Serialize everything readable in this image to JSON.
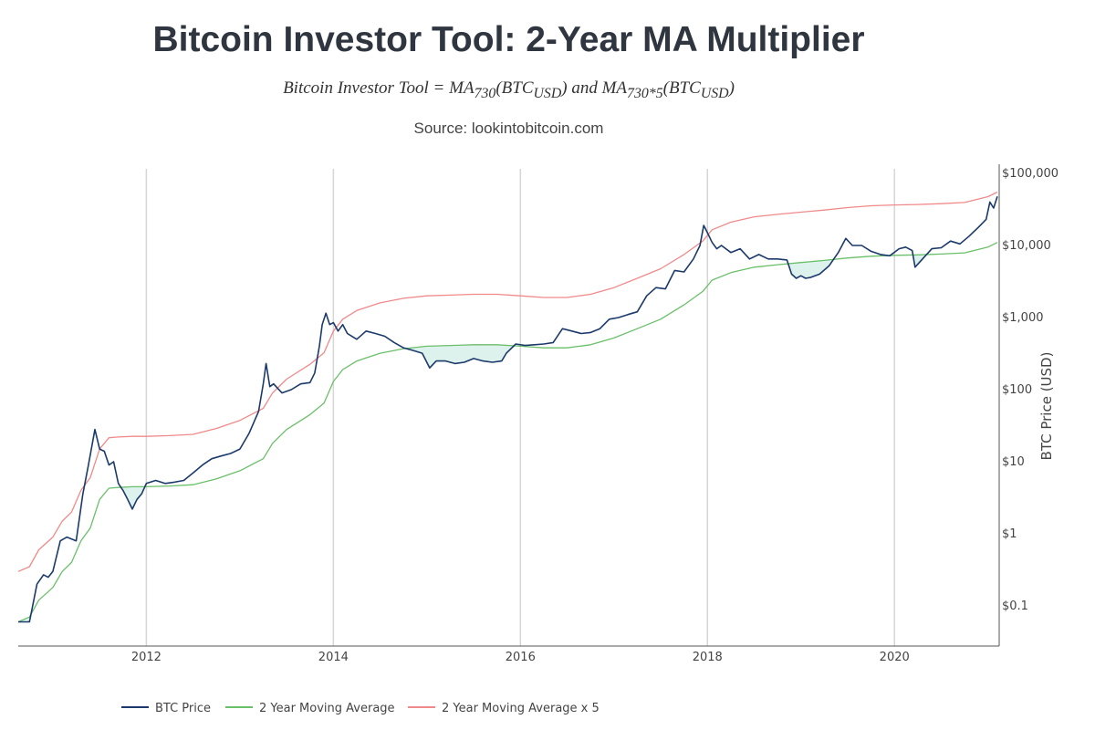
{
  "header": {
    "title": "Bitcoin Investor Tool: 2-Year MA Multiplier",
    "formula": "Bitcoin Investor Tool = MA730(BTCUSD) and MA730*5(BTCUSD)",
    "source": "Source: lookintobitcoin.com"
  },
  "chart_data": {
    "type": "line",
    "title": "Bitcoin Investor Tool: 2-Year MA Multiplier",
    "subtitle": "Bitcoin Investor Tool = MA730(BTCUSD) and MA730*5(BTCUSD)",
    "xlabel": "",
    "ylabel": "BTC Price (USD)",
    "yscale": "log",
    "ylim": [
      0.04,
      100000
    ],
    "xlim": [
      2010.63,
      2021.12
    ],
    "x_ticks": [
      "2012",
      "2014",
      "2016",
      "2018",
      "2020"
    ],
    "y_ticks": [
      "$0.1",
      "$1",
      "$10",
      "$100",
      "$1,000",
      "$10,000",
      "$100,000"
    ],
    "grid": "vertical",
    "y_axis_position": "right",
    "legend_position": "bottom",
    "fill_between": "BTC Price below 2 Year Moving Average",
    "series": [
      {
        "name": "BTC Price",
        "color": "#1b3a6b",
        "x": [
          2010.63,
          2010.75,
          2010.83,
          2010.9,
          2010.95,
          2011.0,
          2011.08,
          2011.15,
          2011.25,
          2011.32,
          2011.38,
          2011.45,
          2011.5,
          2011.55,
          2011.6,
          2011.65,
          2011.7,
          2011.75,
          2011.8,
          2011.85,
          2011.9,
          2011.95,
          2012.0,
          2012.1,
          2012.2,
          2012.3,
          2012.4,
          2012.5,
          2012.6,
          2012.7,
          2012.8,
          2012.9,
          2013.0,
          2013.1,
          2013.2,
          2013.25,
          2013.28,
          2013.32,
          2013.36,
          2013.45,
          2013.55,
          2013.65,
          2013.75,
          2013.8,
          2013.85,
          2013.88,
          2013.92,
          2013.96,
          2014.0,
          2014.05,
          2014.1,
          2014.15,
          2014.25,
          2014.35,
          2014.45,
          2014.55,
          2014.65,
          2014.75,
          2014.85,
          2014.95,
          2015.03,
          2015.1,
          2015.2,
          2015.3,
          2015.4,
          2015.5,
          2015.6,
          2015.7,
          2015.8,
          2015.85,
          2015.95,
          2016.05,
          2016.15,
          2016.25,
          2016.35,
          2016.45,
          2016.55,
          2016.65,
          2016.75,
          2016.85,
          2016.95,
          2017.05,
          2017.15,
          2017.25,
          2017.35,
          2017.45,
          2017.55,
          2017.65,
          2017.75,
          2017.85,
          2017.92,
          2017.96,
          2018.0,
          2018.05,
          2018.1,
          2018.15,
          2018.25,
          2018.35,
          2018.45,
          2018.55,
          2018.65,
          2018.75,
          2018.85,
          2018.9,
          2018.95,
          2019.0,
          2019.05,
          2019.1,
          2019.2,
          2019.3,
          2019.4,
          2019.48,
          2019.55,
          2019.65,
          2019.75,
          2019.85,
          2019.95,
          2020.05,
          2020.12,
          2020.19,
          2020.22,
          2020.3,
          2020.4,
          2020.5,
          2020.6,
          2020.7,
          2020.8,
          2020.9,
          2020.98,
          2021.02,
          2021.06,
          2021.1
        ],
        "values": [
          0.06,
          0.06,
          0.2,
          0.27,
          0.25,
          0.3,
          0.8,
          0.9,
          0.8,
          3.5,
          9.0,
          28.0,
          15.0,
          14.0,
          9.0,
          10.0,
          5.0,
          4.0,
          3.0,
          2.2,
          3.0,
          3.6,
          5.0,
          5.5,
          5.0,
          5.2,
          5.5,
          7.0,
          9.0,
          11.0,
          12.0,
          13.0,
          15.0,
          25.0,
          50.0,
          120.0,
          230.0,
          110.0,
          120.0,
          90.0,
          100.0,
          120.0,
          125.0,
          170.0,
          400.0,
          800.0,
          1150.0,
          800.0,
          850.0,
          650.0,
          800.0,
          600.0,
          500.0,
          650.0,
          600.0,
          550.0,
          450.0,
          380.0,
          350.0,
          320.0,
          200.0,
          250.0,
          250.0,
          230.0,
          240.0,
          270.0,
          250.0,
          240.0,
          250.0,
          320.0,
          430.0,
          410.0,
          420.0,
          430.0,
          450.0,
          700.0,
          650.0,
          600.0,
          620.0,
          700.0,
          950.0,
          1000.0,
          1100.0,
          1200.0,
          2000.0,
          2600.0,
          2500.0,
          4500.0,
          4300.0,
          6500.0,
          10000.0,
          19000.0,
          15000.0,
          11000.0,
          9000.0,
          10000.0,
          8000.0,
          9000.0,
          6500.0,
          7500.0,
          6500.0,
          6500.0,
          6300.0,
          4000.0,
          3500.0,
          3800.0,
          3500.0,
          3600.0,
          4000.0,
          5200.0,
          8000.0,
          12500.0,
          10000.0,
          10000.0,
          8300.0,
          7500.0,
          7200.0,
          9000.0,
          9500.0,
          8500.0,
          5000.0,
          6500.0,
          9000.0,
          9300.0,
          11500.0,
          10500.0,
          13500.0,
          18000.0,
          23000.0,
          40000.0,
          33000.0,
          48000.0
        ]
      },
      {
        "name": "2 Year Moving Average",
        "color": "#6abf69",
        "x": [
          2010.63,
          2010.75,
          2010.85,
          2011.0,
          2011.1,
          2011.2,
          2011.3,
          2011.4,
          2011.5,
          2011.6,
          2011.7,
          2011.85,
          2012.0,
          2012.25,
          2012.5,
          2012.75,
          2013.0,
          2013.25,
          2013.35,
          2013.5,
          2013.75,
          2013.9,
          2014.0,
          2014.1,
          2014.25,
          2014.5,
          2014.75,
          2015.0,
          2015.25,
          2015.5,
          2015.75,
          2016.0,
          2016.25,
          2016.5,
          2016.75,
          2017.0,
          2017.25,
          2017.5,
          2017.75,
          2017.95,
          2018.05,
          2018.25,
          2018.5,
          2018.75,
          2019.0,
          2019.25,
          2019.5,
          2019.75,
          2020.0,
          2020.25,
          2020.5,
          2020.75,
          2021.0,
          2021.1
        ],
        "values": [
          0.06,
          0.07,
          0.12,
          0.18,
          0.3,
          0.4,
          0.8,
          1.2,
          3.0,
          4.3,
          4.4,
          4.5,
          4.5,
          4.6,
          4.8,
          5.8,
          7.5,
          11.0,
          18.0,
          28.0,
          45.0,
          65.0,
          130.0,
          190.0,
          250.0,
          320.0,
          370.0,
          400.0,
          410.0,
          420.0,
          420.0,
          400.0,
          380.0,
          380.0,
          420.0,
          520.0,
          700.0,
          950.0,
          1500.0,
          2300.0,
          3300.0,
          4200.0,
          5000.0,
          5400.0,
          5800.0,
          6200.0,
          6700.0,
          7100.0,
          7300.0,
          7400.0,
          7600.0,
          7900.0,
          9500.0,
          11000.0
        ]
      },
      {
        "name": "2 Year Moving Average x 5",
        "color": "#f08a8a",
        "x": [
          2010.63,
          2010.75,
          2010.85,
          2011.0,
          2011.1,
          2011.2,
          2011.3,
          2011.4,
          2011.5,
          2011.6,
          2011.7,
          2011.85,
          2012.0,
          2012.25,
          2012.5,
          2012.75,
          2013.0,
          2013.25,
          2013.35,
          2013.5,
          2013.75,
          2013.9,
          2014.0,
          2014.1,
          2014.25,
          2014.5,
          2014.75,
          2015.0,
          2015.25,
          2015.5,
          2015.75,
          2016.0,
          2016.25,
          2016.5,
          2016.75,
          2017.0,
          2017.25,
          2017.5,
          2017.75,
          2017.95,
          2018.05,
          2018.25,
          2018.5,
          2018.75,
          2019.0,
          2019.25,
          2019.5,
          2019.75,
          2020.0,
          2020.25,
          2020.5,
          2020.75,
          2021.0,
          2021.1
        ],
        "values": [
          0.3,
          0.35,
          0.6,
          0.9,
          1.5,
          2.0,
          4.0,
          6.0,
          15.0,
          21.5,
          22.0,
          22.5,
          22.5,
          23.0,
          24.0,
          29.0,
          37.5,
          55.0,
          90.0,
          140.0,
          225.0,
          325.0,
          650.0,
          950.0,
          1250.0,
          1600.0,
          1850.0,
          2000.0,
          2050.0,
          2100.0,
          2100.0,
          2000.0,
          1900.0,
          1900.0,
          2100.0,
          2600.0,
          3500.0,
          4750.0,
          7500.0,
          11500.0,
          16500.0,
          21000.0,
          25000.0,
          27000.0,
          29000.0,
          31000.0,
          33500.0,
          35500.0,
          36500.0,
          37000.0,
          38000.0,
          39500.0,
          47500.0,
          55000.0
        ]
      }
    ]
  },
  "legend": {
    "items": [
      "BTC Price",
      "2 Year Moving Average",
      "2 Year Moving Average x 5"
    ]
  }
}
